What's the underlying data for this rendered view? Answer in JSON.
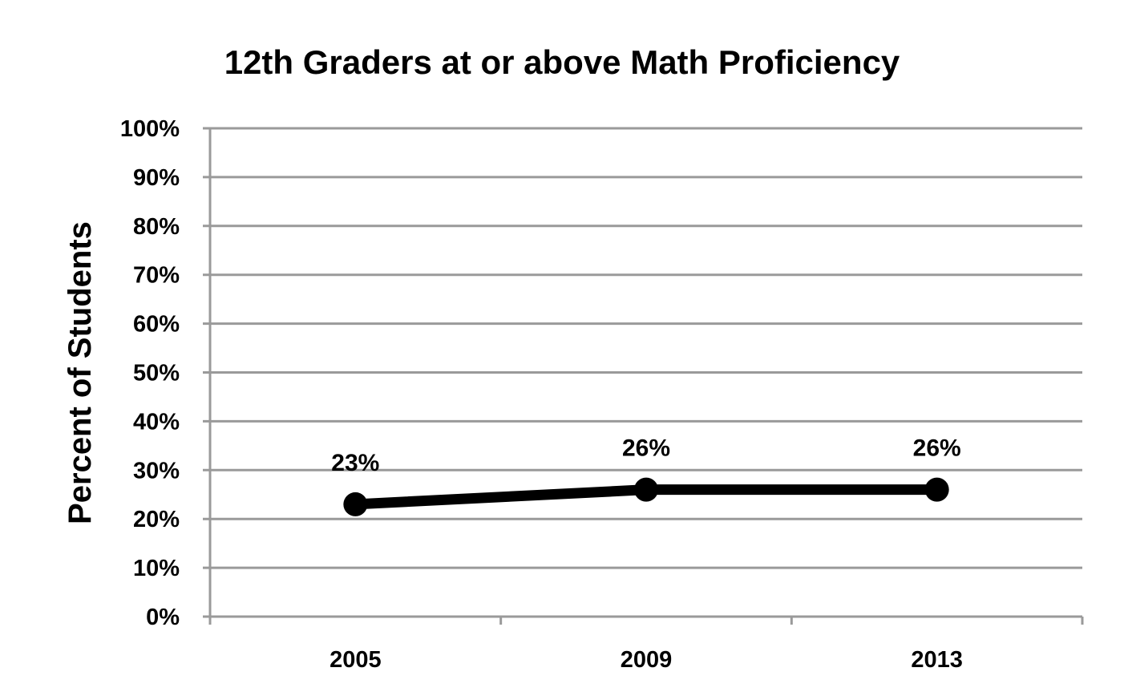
{
  "chart_data": {
    "type": "line",
    "title": "12th Graders at or above Math Proficiency",
    "xlabel": "",
    "ylabel": "Percent of Students",
    "categories": [
      "2005",
      "2009",
      "2013"
    ],
    "series": [
      {
        "values": [
          23,
          26,
          26
        ],
        "data_labels": [
          "23%",
          "26%",
          "26%"
        ]
      }
    ],
    "ylim": [
      0,
      100
    ],
    "y_ticks": [
      0,
      10,
      20,
      30,
      40,
      50,
      60,
      70,
      80,
      90,
      100
    ],
    "y_tick_labels": [
      "0%",
      "10%",
      "20%",
      "30%",
      "40%",
      "50%",
      "60%",
      "70%",
      "80%",
      "90%",
      "100%"
    ],
    "grid": true,
    "legend": "none",
    "colors": {
      "line": "#000000",
      "grid": "#9a9a9a",
      "axis": "#9a9a9a",
      "text": "#000000"
    }
  }
}
